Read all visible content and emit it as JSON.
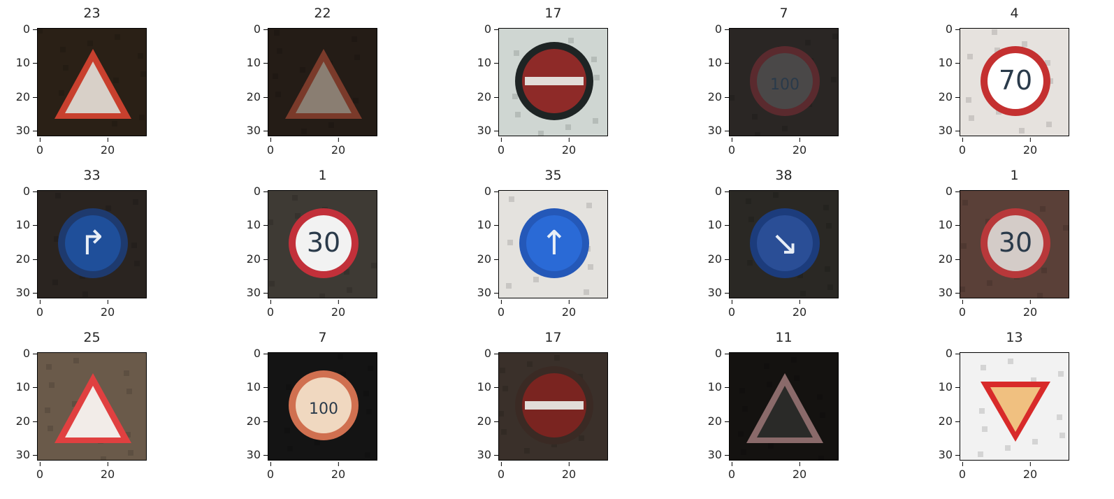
{
  "axes": {
    "y_ticks": [
      "0",
      "10",
      "20",
      "30"
    ],
    "x_ticks": [
      "0",
      "20"
    ]
  },
  "panels": [
    {
      "title": "23",
      "bg": "#2a2016",
      "shape": "triangle",
      "rim": "#c8402e",
      "fill": "#d8d0c8",
      "glyph": ""
    },
    {
      "title": "22",
      "bg": "#241c16",
      "shape": "triangle",
      "rim": "#7a3a2a",
      "fill": "#8a7e72",
      "glyph": ""
    },
    {
      "title": "17",
      "bg": "#cfd6d2",
      "shape": "noentry",
      "rim": "#1e2424",
      "fill": "#8e2a28",
      "glyph": ""
    },
    {
      "title": "7",
      "bg": "#2a2624",
      "shape": "circle",
      "rim": "#5a2a2e",
      "fill": "#4a4848",
      "glyph": "100"
    },
    {
      "title": "4",
      "bg": "#e6e2de",
      "shape": "circle",
      "rim": "#c43030",
      "fill": "#ffffff",
      "glyph": "70"
    },
    {
      "title": "33",
      "bg": "#2a2420",
      "shape": "bluecircle",
      "rim": "#1e3a6e",
      "fill": "#1f4f9a",
      "glyph": "↱"
    },
    {
      "title": "1",
      "bg": "#3e3a34",
      "shape": "circle",
      "rim": "#c2303a",
      "fill": "#f2f2f2",
      "glyph": "30"
    },
    {
      "title": "35",
      "bg": "#e4e2de",
      "shape": "bluecircle",
      "rim": "#2458b8",
      "fill": "#2a6ad6",
      "glyph": "↑"
    },
    {
      "title": "38",
      "bg": "#2a2824",
      "shape": "bluecircle",
      "rim": "#1c3c7c",
      "fill": "#2a4e96",
      "glyph": "↘"
    },
    {
      "title": "1",
      "bg": "#5a4038",
      "shape": "circle",
      "rim": "#b8383a",
      "fill": "#d4ccc8",
      "glyph": "30"
    },
    {
      "title": "25",
      "bg": "#6a5a4a",
      "shape": "triangle",
      "rim": "#e04040",
      "fill": "#f2ece8",
      "glyph": ""
    },
    {
      "title": "7",
      "bg": "#141414",
      "shape": "circle",
      "rim": "#d07050",
      "fill": "#f0d8c0",
      "glyph": "100"
    },
    {
      "title": "17",
      "bg": "#3a302a",
      "shape": "noentry",
      "rim": "#3a2a24",
      "fill": "#7a2420",
      "glyph": ""
    },
    {
      "title": "11",
      "bg": "#141210",
      "shape": "triangle",
      "rim": "#8a6a6a",
      "fill": "#2a2a28",
      "glyph": ""
    },
    {
      "title": "13",
      "bg": "#f2f2f2",
      "shape": "yield",
      "rim": "#d82a2a",
      "fill": "#f0c080",
      "glyph": ""
    }
  ]
}
